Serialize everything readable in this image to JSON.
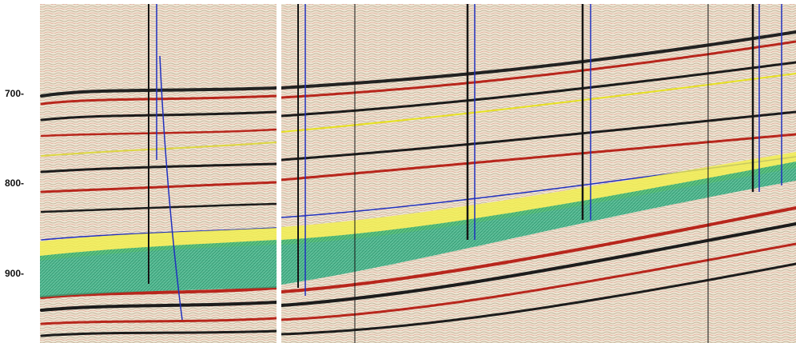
{
  "axis": {
    "ticks": [
      {
        "label": "700-",
        "value": 700
      },
      {
        "label": "800-",
        "value": 800
      },
      {
        "label": "900-",
        "value": 900
      }
    ]
  },
  "colors": {
    "background": "#e8e0cc",
    "peak_red": "#b8261c",
    "trough_black": "#1c1c1c",
    "horizon_yellow": "#e6e020",
    "horizon_blue": "#2030c0",
    "zone_yellow": "#f2f04a",
    "zone_green": "#2fb486",
    "well_black": "#151515"
  }
}
